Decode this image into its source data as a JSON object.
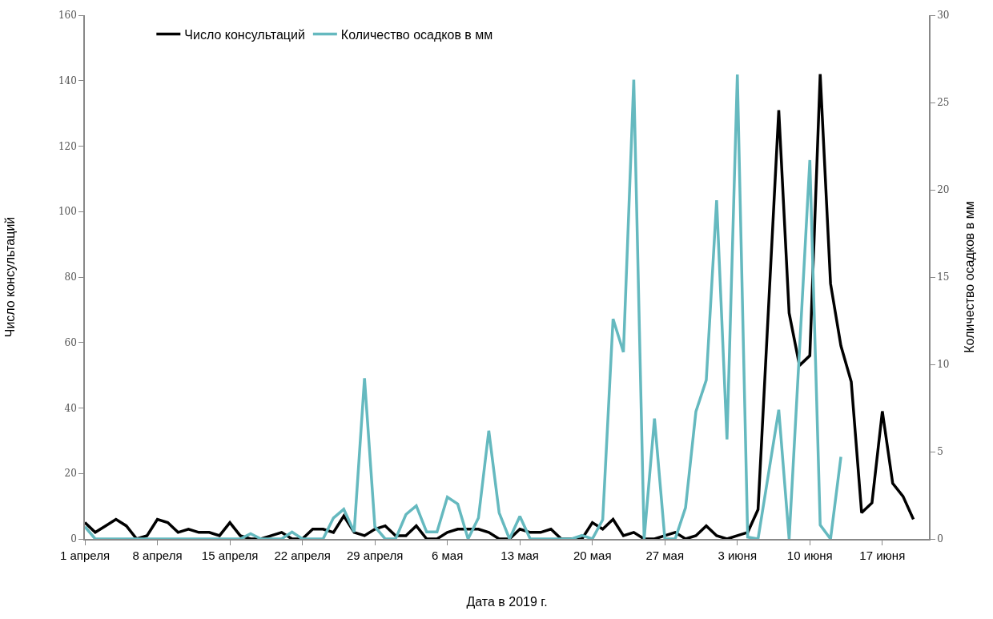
{
  "chart_data": {
    "type": "line",
    "xlabel": "Дата в 2019 г.",
    "ylabel": "Число консультаций",
    "y2label": "Количество осадков в мм",
    "x": [
      "2019-04-01",
      "2019-04-02",
      "2019-04-03",
      "2019-04-04",
      "2019-04-05",
      "2019-04-06",
      "2019-04-07",
      "2019-04-08",
      "2019-04-09",
      "2019-04-10",
      "2019-04-11",
      "2019-04-12",
      "2019-04-13",
      "2019-04-14",
      "2019-04-15",
      "2019-04-16",
      "2019-04-17",
      "2019-04-18",
      "2019-04-19",
      "2019-04-20",
      "2019-04-21",
      "2019-04-22",
      "2019-04-23",
      "2019-04-24",
      "2019-04-25",
      "2019-04-26",
      "2019-04-27",
      "2019-04-28",
      "2019-04-29",
      "2019-04-30",
      "2019-05-01",
      "2019-05-02",
      "2019-05-03",
      "2019-05-04",
      "2019-05-05",
      "2019-05-06",
      "2019-05-07",
      "2019-05-08",
      "2019-05-09",
      "2019-05-10",
      "2019-05-11",
      "2019-05-12",
      "2019-05-13",
      "2019-05-14",
      "2019-05-15",
      "2019-05-16",
      "2019-05-17",
      "2019-05-18",
      "2019-05-19",
      "2019-05-20",
      "2019-05-21",
      "2019-05-22",
      "2019-05-23",
      "2019-05-24",
      "2019-05-25",
      "2019-05-26",
      "2019-05-27",
      "2019-05-28",
      "2019-05-29",
      "2019-05-30",
      "2019-05-31",
      "2019-06-01",
      "2019-06-02",
      "2019-06-03",
      "2019-06-04",
      "2019-06-05",
      "2019-06-06",
      "2019-06-07",
      "2019-06-08",
      "2019-06-09",
      "2019-06-10",
      "2019-06-11",
      "2019-06-12",
      "2019-06-13",
      "2019-06-14",
      "2019-06-15",
      "2019-06-16",
      "2019-06-17",
      "2019-06-18",
      "2019-06-19",
      "2019-06-20"
    ],
    "series": [
      {
        "name": "Число консультаций",
        "color": "#000000",
        "values": [
          5,
          2,
          4,
          6,
          4,
          0,
          1,
          6,
          5,
          2,
          3,
          2,
          2,
          1,
          5,
          1,
          0,
          0,
          1,
          2,
          0,
          0,
          3,
          3,
          2,
          7,
          2,
          1,
          3,
          4,
          1,
          1,
          4,
          0,
          0,
          2,
          3,
          3,
          3,
          2,
          0,
          0,
          3,
          2,
          2,
          3,
          0,
          0,
          0,
          5,
          3,
          6,
          1,
          2,
          0,
          0,
          1,
          2,
          0,
          1,
          4,
          1,
          0,
          1,
          2,
          9,
          70,
          131,
          69,
          53,
          56,
          142,
          78,
          59,
          48,
          8,
          11,
          39,
          17,
          13,
          6
        ]
      },
      {
        "name": "Количество осадков в мм",
        "color": "#65b9bf",
        "axis": "y2",
        "values": [
          0.7,
          0,
          0,
          0,
          0,
          0,
          0,
          0,
          0,
          0,
          0,
          0,
          0,
          0,
          0,
          0,
          0.3,
          0,
          0,
          0,
          0.4,
          0,
          0,
          0,
          1.2,
          1.7,
          0.4,
          9.2,
          0.7,
          0,
          0,
          1.4,
          1.9,
          0.4,
          0.4,
          2.4,
          2.0,
          0,
          1.2,
          6.2,
          1.5,
          0,
          1.3,
          0,
          0,
          0,
          0,
          0,
          0.2,
          0,
          1.1,
          12.6,
          10.7,
          26.3,
          0,
          6.9,
          0,
          0,
          1.8,
          7.3,
          9.1,
          19.4,
          5.7,
          26.6,
          0.1,
          0,
          3.7,
          7.4,
          0,
          10.8,
          21.7,
          0.8,
          0,
          4.7,
          null,
          null,
          null,
          null,
          null,
          null,
          null
        ]
      }
    ],
    "xlim": [
      "2019-04-01",
      "2019-06-21T12:00"
    ],
    "xticks": [
      {
        "value": "2019-04-01",
        "label": "1 апреля"
      },
      {
        "value": "2019-04-08",
        "label": "8 апреля"
      },
      {
        "value": "2019-04-15",
        "label": "15 апреля"
      },
      {
        "value": "2019-04-22",
        "label": "22 апреля"
      },
      {
        "value": "2019-04-29",
        "label": "29 апреля"
      },
      {
        "value": "2019-05-06",
        "label": "6 мая"
      },
      {
        "value": "2019-05-13",
        "label": "13 мая"
      },
      {
        "value": "2019-05-20",
        "label": "20 мая"
      },
      {
        "value": "2019-05-27",
        "label": "27 мая"
      },
      {
        "value": "2019-06-03",
        "label": "3 июня"
      },
      {
        "value": "2019-06-10",
        "label": "10 июня"
      },
      {
        "value": "2019-06-17",
        "label": "17 июня"
      }
    ],
    "ylim": [
      0,
      160
    ],
    "yticks": [
      0,
      20,
      40,
      60,
      80,
      100,
      120,
      140,
      160
    ],
    "y2lim": [
      0,
      30
    ],
    "y2ticks": [
      0,
      5,
      10,
      15,
      20,
      25,
      30
    ],
    "legend": "top left",
    "marker": "none",
    "line_style": "solid"
  }
}
